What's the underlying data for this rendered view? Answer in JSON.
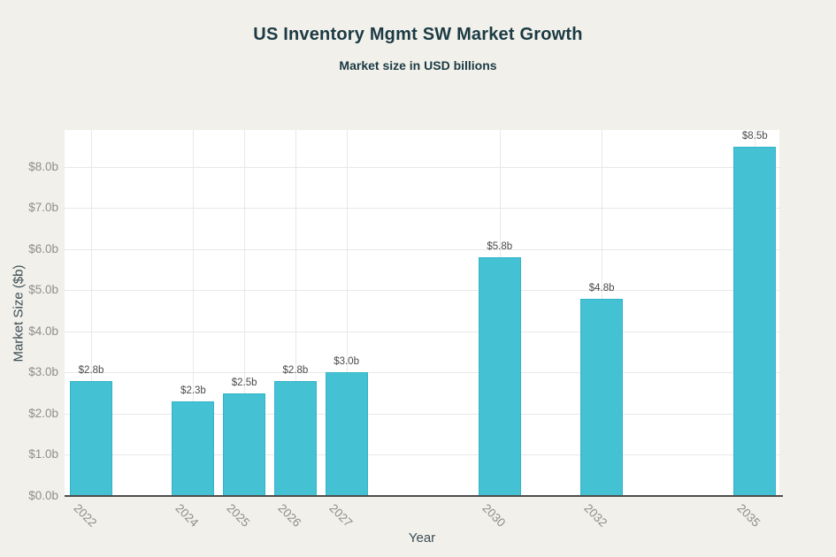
{
  "header": {
    "title": "US Inventory Mgmt SW Market Growth",
    "subtitle": "Market size in USD billions"
  },
  "chart_data": {
    "type": "bar",
    "title": "US Inventory Mgmt SW Market Growth",
    "subtitle": "Market size in USD billions",
    "xlabel": "Year",
    "ylabel": "Market Size ($b)",
    "x_axis_type": "linear",
    "x": [
      2022,
      2024,
      2025,
      2026,
      2027,
      2030,
      2032,
      2035
    ],
    "values": [
      2.8,
      2.3,
      2.5,
      2.8,
      3.0,
      5.8,
      4.8,
      8.5
    ],
    "bar_labels": [
      "$2.8b",
      "$2.3b",
      "$2.5b",
      "$2.8b",
      "$3.0b",
      "$5.8b",
      "$4.8b",
      "$8.5b"
    ],
    "x_tick_labels": [
      "2022",
      "2024",
      "2025",
      "2026",
      "2027",
      "2030",
      "2032",
      "2035"
    ],
    "y_tick_values": [
      0,
      1,
      2,
      3,
      4,
      5,
      6,
      7,
      8
    ],
    "y_tick_labels": [
      "$0.0b",
      "$1.0b",
      "$2.0b",
      "$3.0b",
      "$4.0b",
      "$5.0b",
      "$6.0b",
      "$7.0b",
      "$8.0b"
    ],
    "xlim": [
      2021.48,
      2035.48
    ],
    "ylim": [
      0,
      8.9
    ],
    "grid": true,
    "legend": "none",
    "colors": {
      "bar_fill": "#45c1d4",
      "bar_border": "#32b4c9",
      "background": "#f1f0ea",
      "plot_background": "#ffffff",
      "gridline": "#e8e8e8",
      "axis_line": "#4d4d4d",
      "title_text": "#1b3a44",
      "axis_title_text": "#3b4d55",
      "tick_label_text": "#8e8e8e",
      "bar_label_text": "#4a4a4a"
    }
  }
}
